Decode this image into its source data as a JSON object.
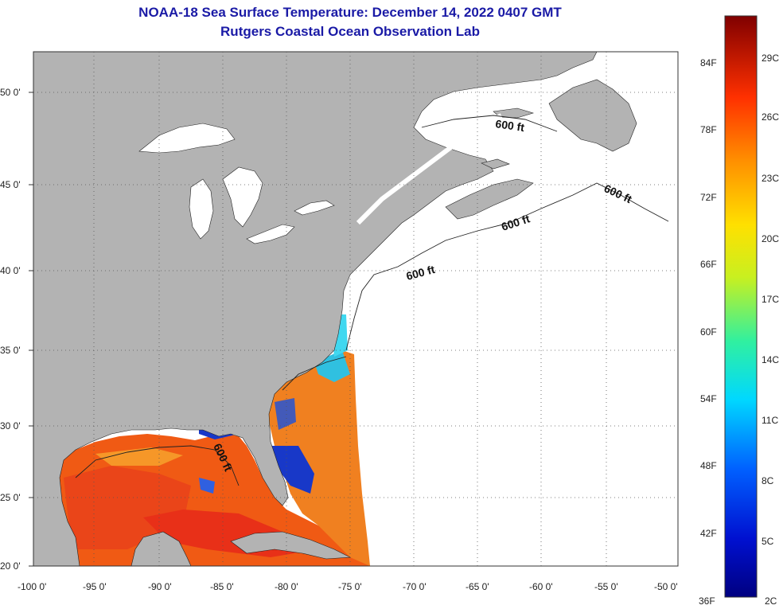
{
  "title": "NOAA-18 Sea Surface Temperature:  December 14, 2022 0407 GMT",
  "subtitle": "Rutgers Coastal Ocean Observation Lab",
  "map": {
    "lat_ticks": [
      "50 0'",
      "45 0'",
      "40 0'",
      "35 0'",
      "30 0'",
      "25 0'",
      "20 0'"
    ],
    "lon_ticks": [
      "-100 0'",
      "-95 0'",
      "-90 0'",
      "-85 0'",
      "-80 0'",
      "-75 0'",
      "-70 0'",
      "-65 0'",
      "-60 0'",
      "-55 0'",
      "-50 0'"
    ],
    "isobath_label": "600 ft",
    "colors": {
      "land": "#b3b3b3",
      "water_nodata": "#ffffff",
      "gulf_warm": "#f05a14",
      "gulf_hot": "#e8301a",
      "cold": "#1a3acc"
    }
  },
  "colorbar": {
    "fahrenheit": [
      "84F",
      "78F",
      "72F",
      "66F",
      "60F",
      "54F",
      "48F",
      "42F",
      "36F"
    ],
    "celsius": [
      "29C",
      "26C",
      "23C",
      "20C",
      "17C",
      "14C",
      "11C",
      "8C",
      "5C",
      "2C"
    ],
    "range_F": [
      36,
      88
    ]
  }
}
